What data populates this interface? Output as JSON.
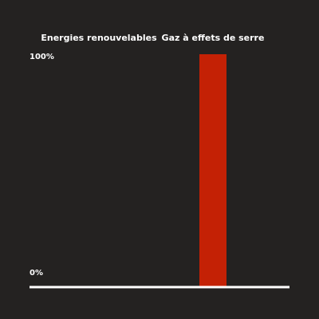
{
  "chart_data": {
    "type": "bar",
    "categories": [
      "Energies renouvelables",
      "Gaz à effets de serre"
    ],
    "values": [
      0,
      100
    ],
    "ylim": [
      0,
      100
    ],
    "y_ticks": [
      "100%",
      "0%"
    ],
    "grid": false,
    "colors": {
      "background": "#242221",
      "bar": "#c42105",
      "axis": "#ffffff",
      "text": "#ffffff"
    }
  }
}
